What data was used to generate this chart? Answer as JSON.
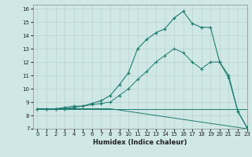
{
  "xlabel": "Humidex (Indice chaleur)",
  "xlim": [
    -0.5,
    23
  ],
  "ylim": [
    7,
    16.3
  ],
  "xticks": [
    0,
    1,
    2,
    3,
    4,
    5,
    6,
    7,
    8,
    9,
    10,
    11,
    12,
    13,
    14,
    15,
    16,
    17,
    18,
    19,
    20,
    21,
    22,
    23
  ],
  "yticks": [
    7,
    8,
    9,
    10,
    11,
    12,
    13,
    14,
    15,
    16
  ],
  "bg_color": "#cfe8e6",
  "grid_color": "#b8d4d2",
  "line_color": "#1e7b70",
  "line1_x": [
    0,
    1,
    2,
    3,
    4,
    5,
    6,
    7,
    8,
    9,
    10,
    11,
    12,
    13,
    14,
    15,
    16,
    17,
    18,
    19,
    20,
    21,
    22,
    23
  ],
  "line1_y": [
    8.5,
    8.5,
    8.5,
    8.5,
    8.5,
    8.5,
    8.5,
    8.5,
    8.5,
    8.4,
    8.3,
    8.2,
    8.1,
    8.0,
    7.9,
    7.8,
    7.7,
    7.6,
    7.5,
    7.4,
    7.3,
    7.2,
    7.1,
    7.0
  ],
  "line2_x": [
    0,
    1,
    2,
    3,
    4,
    5,
    6,
    7,
    8,
    9,
    10,
    11,
    12,
    13,
    14,
    15,
    16,
    17,
    18,
    19,
    20,
    21,
    22,
    23
  ],
  "line2_y": [
    8.5,
    8.5,
    8.5,
    8.6,
    8.7,
    8.7,
    8.8,
    8.9,
    9.0,
    9.5,
    10.0,
    10.7,
    11.3,
    12.0,
    12.5,
    13.0,
    12.7,
    12.0,
    11.5,
    12.0,
    12.0,
    11.0,
    8.3,
    7.1
  ],
  "line3_x": [
    0,
    1,
    2,
    3,
    4,
    5,
    6,
    7,
    8,
    9,
    10,
    11,
    12,
    13,
    14,
    15,
    16,
    17,
    18,
    19,
    20,
    21,
    22,
    23
  ],
  "line3_y": [
    8.5,
    8.5,
    8.5,
    8.5,
    8.5,
    8.5,
    8.5,
    8.5,
    8.5,
    8.5,
    8.5,
    8.5,
    8.5,
    8.5,
    8.5,
    8.5,
    8.5,
    8.5,
    8.5,
    8.5,
    8.5,
    8.5,
    8.5,
    8.5
  ],
  "line4_x": [
    0,
    1,
    2,
    3,
    4,
    5,
    6,
    7,
    8,
    9,
    10,
    11,
    12,
    13,
    14,
    15,
    16,
    17,
    18,
    19,
    20,
    21,
    22,
    23
  ],
  "line4_y": [
    8.5,
    8.5,
    8.5,
    8.5,
    8.6,
    8.7,
    8.9,
    9.1,
    9.5,
    10.3,
    11.2,
    13.0,
    13.7,
    14.2,
    14.5,
    15.3,
    15.8,
    14.9,
    14.6,
    14.6,
    12.0,
    10.8,
    8.3,
    7.1
  ]
}
